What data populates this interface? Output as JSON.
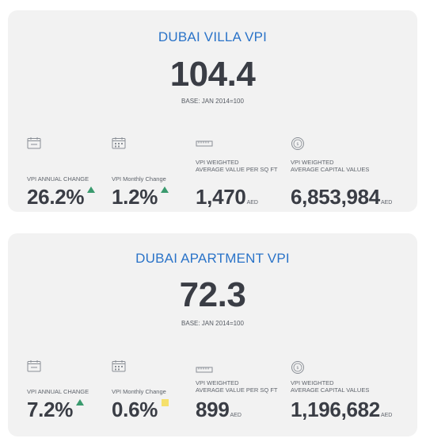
{
  "cards": [
    {
      "title": "DUBAI VILLA VPI",
      "index_value": "104.4",
      "base_text": "BASE: JAN 2014=100",
      "stats": [
        {
          "icon": "calendar-year-icon",
          "label_line1": "VPI ANNUAL CHANGE",
          "label_line2": "",
          "value": "26.2%",
          "trend": "up",
          "unit": ""
        },
        {
          "icon": "calendar-month-icon",
          "label_line1": "VPI Monthly Change",
          "label_line2": "",
          "value": "1.2%",
          "trend": "up",
          "unit": ""
        },
        {
          "icon": "ruler-icon",
          "label_line1": "VPI WEIGHTED",
          "label_line2": "AVERAGE VALUE PER SQ FT",
          "value": "1,470",
          "trend": "none",
          "unit": "AED"
        },
        {
          "icon": "coin-icon",
          "label_line1": "VPI WEIGHTED",
          "label_line2": "AVERAGE CAPITAL VALUES",
          "value": "6,853,984",
          "trend": "none",
          "unit": "AED"
        }
      ]
    },
    {
      "title": "DUBAI APARTMENT VPI",
      "index_value": "72.3",
      "base_text": "BASE: JAN 2014=100",
      "stats": [
        {
          "icon": "calendar-year-icon",
          "label_line1": "VPI ANNUAL CHANGE",
          "label_line2": "",
          "value": "7.2%",
          "trend": "up",
          "unit": ""
        },
        {
          "icon": "calendar-month-icon",
          "label_line1": "VPI Monthly Change",
          "label_line2": "",
          "value": "0.6%",
          "trend": "flat",
          "unit": ""
        },
        {
          "icon": "ruler-icon",
          "label_line1": "VPI WEIGHTED",
          "label_line2": "AVERAGE VALUE PER SQ FT",
          "value": "899",
          "trend": "none",
          "unit": "AED"
        },
        {
          "icon": "coin-icon",
          "label_line1": "VPI WEIGHTED",
          "label_line2": "AVERAGE CAPITAL VALUES",
          "value": "1,196,682",
          "trend": "none",
          "unit": "AED"
        }
      ]
    }
  ],
  "colors": {
    "title_blue": "#2a73c8",
    "number_dark": "#3a3d45",
    "trend_up_green": "#3a9a6e",
    "trend_flat_yellow": "#f5e06b",
    "card_bg": "#f2f2f2"
  }
}
